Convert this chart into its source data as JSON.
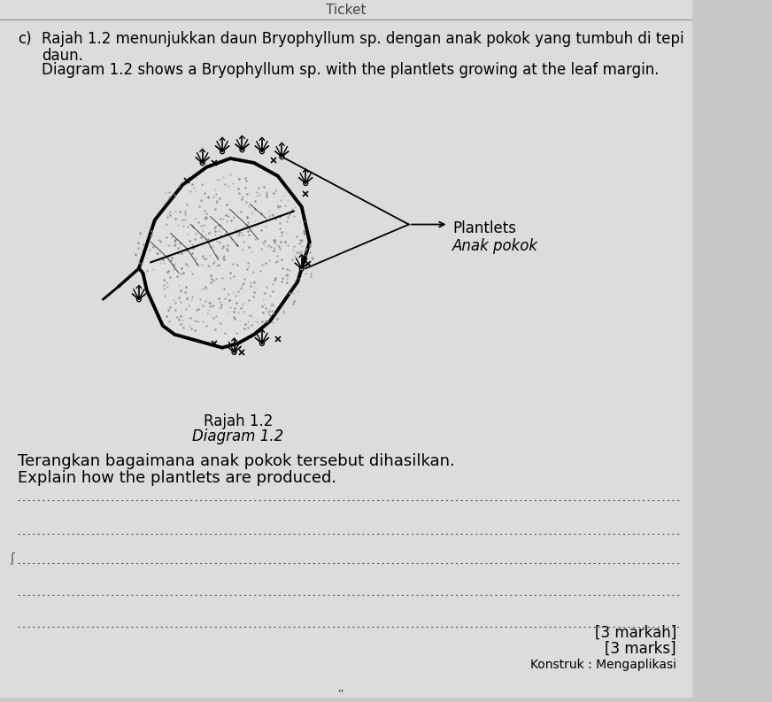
{
  "bg_color": "#c8c8c8",
  "paper_color": "#dcdcdc",
  "section_label": "c)",
  "malay_text_line1": "Rajah 1.2 menunjukkan daun Bryophyllum sp. dengan anak pokok yang tumbuh di tepi",
  "malay_text_line2": "daun.",
  "english_text_line1": "Diagram 1.2 shows a Bryophyllum sp. with the plantlets growing at the leaf margin.",
  "caption_malay": "Rajah 1.2",
  "caption_english": "Diagram 1.2",
  "question_malay": "Terangkan bagaimana anak pokok tersebut dihasilkan.",
  "question_english": "Explain how the plantlets are produced.",
  "label_plantlets": "Plantlets",
  "label_anak_pokok": "Anak pokok",
  "marks_malay": "[3 markah]",
  "marks_english": "[3 marks]",
  "konstruk": "Konstruk : Mengaplikasi",
  "font_size_body": 12,
  "font_size_caption": 12,
  "font_size_marks": 12
}
